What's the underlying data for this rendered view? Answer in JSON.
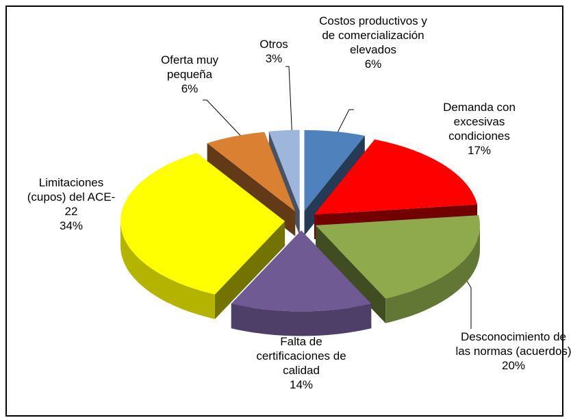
{
  "chart_data": {
    "type": "pie3d",
    "categories": [
      "Costos productivos y de comercialización elevados",
      "Demanda con excesivas condiciones",
      "Desconocimiento de las normas (acuerdos)",
      "Falta de certificaciones de calidad",
      "Limitaciones (cupos) del ACE-22",
      "Oferta muy pequeña",
      "Otros"
    ],
    "values": [
      6,
      17,
      20,
      14,
      34,
      6,
      3
    ],
    "value_labels": [
      "6%",
      "17%",
      "20%",
      "14%",
      "34%",
      "6%",
      "3%"
    ],
    "colors": [
      "#4f81bd",
      "#ff0000",
      "#8eaa4c",
      "#6f5a94",
      "#ffff00",
      "#d98032",
      "#9fb6dc"
    ]
  }
}
